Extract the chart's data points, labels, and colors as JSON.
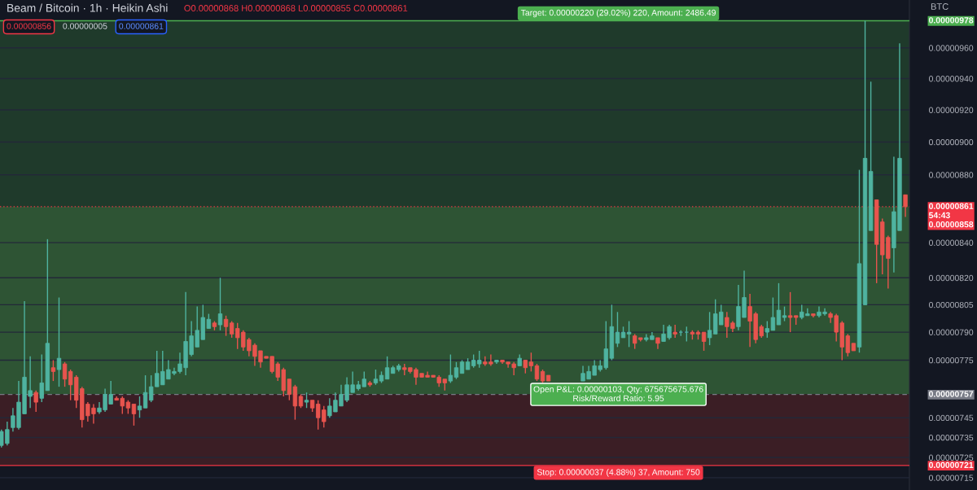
{
  "chart_data": {
    "type": "candlestick",
    "title": "Beam / Bitcoin · 1h · Heikin Ashi",
    "ylabel": "BTC",
    "annotations": [
      "O0.00000868 H0.00000868 L0.00000855 C0.00000861",
      "0.00000856",
      "0.00000005",
      "0.00000861"
    ],
    "categories": [
      null,
      null,
      null,
      null,
      null,
      null,
      null,
      null,
      null,
      null,
      null,
      null,
      null,
      null,
      null,
      null,
      null,
      null,
      null,
      null,
      null,
      null,
      null,
      null,
      null,
      null,
      null,
      null,
      null,
      null,
      null,
      null,
      null,
      null,
      null,
      null,
      null,
      null,
      null,
      null,
      null,
      null,
      null,
      null,
      null,
      null,
      null,
      null,
      null,
      null,
      null,
      null,
      null,
      null,
      null,
      null,
      null,
      null,
      null,
      null,
      null,
      null,
      null,
      null,
      null,
      null,
      null,
      null,
      null,
      null,
      null,
      null,
      null,
      null,
      null,
      null,
      null,
      null,
      null,
      null,
      null,
      null,
      null,
      null,
      null,
      null,
      null,
      null,
      null,
      null,
      null,
      null,
      null,
      null,
      null,
      null,
      null,
      null,
      null,
      null,
      null,
      null,
      null,
      null,
      null,
      null,
      null,
      null,
      null,
      null,
      null,
      null,
      null,
      null,
      null,
      null,
      null,
      null,
      null,
      null,
      null,
      null,
      null,
      null,
      null,
      null,
      null,
      null,
      null,
      null,
      null,
      null,
      null,
      null,
      null,
      null,
      null,
      null,
      null,
      null,
      null,
      null,
      null,
      null,
      null,
      null,
      null,
      null,
      null,
      null,
      null,
      null,
      null,
      null,
      null,
      null,
      null,
      null
    ],
    "ohlc": [
      [
        7.31e-06,
        7.39e-06,
        7.3e-06,
        7.38e-06
      ],
      [
        7.32e-06,
        7.43e-06,
        7.31e-06,
        7.39e-06
      ],
      [
        7.4e-06,
        7.5e-06,
        7.38e-06,
        7.46e-06
      ],
      [
        7.4e-06,
        7.64e-06,
        7.39e-06,
        7.53e-06
      ],
      [
        7.47e-06,
        8.07e-06,
        7.47e-06,
        7.66e-06
      ],
      [
        7.56e-06,
        7.77e-06,
        7.5e-06,
        7.59e-06
      ],
      [
        7.58e-06,
        7.59e-06,
        7.48e-06,
        7.53e-06
      ],
      [
        7.55e-06,
        7.78e-06,
        7.53e-06,
        7.63e-06
      ],
      [
        7.59e-06,
        8.42e-06,
        7.59e-06,
        7.84e-06
      ],
      [
        7.71e-06,
        7.75e-06,
        7.64e-06,
        7.69e-06
      ],
      [
        7.7e-06,
        8.09e-06,
        7.61e-06,
        7.76e-06
      ],
      [
        7.73e-06,
        7.74e-06,
        7.61e-06,
        7.65e-06
      ],
      [
        7.69e-06,
        7.7e-06,
        7.54e-06,
        7.62e-06
      ],
      [
        7.66e-06,
        7.67e-06,
        7.5e-06,
        7.54e-06
      ],
      [
        7.6e-06,
        7.61e-06,
        7.4e-06,
        7.44e-06
      ],
      [
        7.52e-06,
        7.53e-06,
        7.43e-06,
        7.46e-06
      ],
      [
        7.5e-06,
        7.52e-06,
        7.42e-06,
        7.47e-06
      ],
      [
        7.48e-06,
        7.53e-06,
        7.47e-06,
        7.5e-06
      ],
      [
        7.49e-06,
        7.6e-06,
        7.48e-06,
        7.57e-06
      ],
      [
        7.52e-06,
        7.64e-06,
        7.52e-06,
        7.57e-06
      ],
      [
        7.55e-06,
        7.56e-06,
        7.54e-06,
        7.54e-06
      ],
      [
        7.55e-06,
        7.56e-06,
        7.47e-06,
        7.51e-06
      ],
      [
        7.53e-06,
        7.54e-06,
        7.47e-06,
        7.5e-06
      ],
      [
        7.52e-06,
        7.52e-06,
        7.41e-06,
        7.47e-06
      ],
      [
        7.49e-06,
        7.56e-06,
        7.45e-06,
        7.51e-06
      ],
      [
        7.5e-06,
        7.67e-06,
        7.5e-06,
        7.58e-06
      ],
      [
        7.54e-06,
        7.67e-06,
        7.53e-06,
        7.61e-06
      ],
      [
        7.61e-06,
        7.8e-06,
        7.61e-06,
        7.68e-06
      ],
      [
        7.62e-06,
        7.8e-06,
        7.62e-06,
        7.69e-06
      ],
      [
        7.65e-06,
        7.75e-06,
        7.65e-06,
        7.7e-06
      ],
      [
        7.68e-06,
        7.71e-06,
        7.67e-06,
        7.69e-06
      ],
      [
        7.69e-06,
        7.79e-06,
        7.68e-06,
        7.73e-06
      ],
      [
        7.71e-06,
        8.12e-06,
        7.67e-06,
        7.85e-06
      ],
      [
        7.78e-06,
        7.96e-06,
        7.77e-06,
        7.88e-06
      ],
      [
        7.82e-06,
        8.04e-06,
        7.82e-06,
        7.91e-06
      ],
      [
        7.86e-06,
        8.05e-06,
        7.86e-06,
        7.98e-06
      ],
      [
        7.92e-06,
        8e-06,
        7.92e-06,
        7.97e-06
      ],
      [
        7.95e-06,
        7.96e-06,
        7.91e-06,
        7.93e-06
      ],
      [
        7.94e-06,
        8.2e-06,
        7.91e-06,
        8e-06
      ],
      [
        7.97e-06,
        7.99e-06,
        7.88e-06,
        7.93e-06
      ],
      [
        7.95e-06,
        7.96e-06,
        7.87e-06,
        7.89e-06
      ],
      [
        7.92e-06,
        7.95e-06,
        7.81e-06,
        7.87e-06
      ],
      [
        7.9e-06,
        7.91e-06,
        7.8e-06,
        7.82e-06
      ],
      [
        7.86e-06,
        7.87e-06,
        7.77e-06,
        7.8e-06
      ],
      [
        7.83e-06,
        7.84e-06,
        7.72e-06,
        7.77e-06
      ],
      [
        7.8e-06,
        7.8e-06,
        7.71e-06,
        7.74e-06
      ],
      [
        7.77e-06,
        7.77e-06,
        7.76e-06,
        7.76e-06
      ],
      [
        7.77e-06,
        7.77e-06,
        7.68e-06,
        7.69e-06
      ],
      [
        7.73e-06,
        7.74e-06,
        7.64e-06,
        7.66e-06
      ],
      [
        7.7e-06,
        7.71e-06,
        7.56e-06,
        7.59e-06
      ],
      [
        7.65e-06,
        7.65e-06,
        7.54e-06,
        7.57e-06
      ],
      [
        7.61e-06,
        7.62e-06,
        7.44e-06,
        7.51e-06
      ],
      [
        7.56e-06,
        7.57e-06,
        7.5e-06,
        7.51e-06
      ],
      [
        7.53e-06,
        7.58e-06,
        7.5e-06,
        7.54e-06
      ],
      [
        7.54e-06,
        7.54e-06,
        7.48e-06,
        7.5e-06
      ],
      [
        7.52e-06,
        7.54e-06,
        7.39e-06,
        7.45e-06
      ],
      [
        7.49e-06,
        7.51e-06,
        7.4e-06,
        7.43e-06
      ],
      [
        7.46e-06,
        7.55e-06,
        7.45e-06,
        7.51e-06
      ],
      [
        7.48e-06,
        7.58e-06,
        7.48e-06,
        7.54e-06
      ],
      [
        7.51e-06,
        7.62e-06,
        7.51e-06,
        7.57e-06
      ],
      [
        7.54e-06,
        7.66e-06,
        7.53e-06,
        7.62e-06
      ],
      [
        7.58e-06,
        7.69e-06,
        7.58e-06,
        7.62e-06
      ],
      [
        7.6e-06,
        7.64e-06,
        7.59e-06,
        7.62e-06
      ],
      [
        7.61e-06,
        7.69e-06,
        7.61e-06,
        7.65e-06
      ],
      [
        7.63e-06,
        7.64e-06,
        7.61e-06,
        7.62e-06
      ],
      [
        7.63e-06,
        7.7e-06,
        7.62e-06,
        7.65e-06
      ],
      [
        7.64e-06,
        7.69e-06,
        7.63e-06,
        7.67e-06
      ],
      [
        7.65e-06,
        7.77e-06,
        7.65e-06,
        7.71e-06
      ],
      [
        7.68e-06,
        7.72e-06,
        7.68e-06,
        7.71e-06
      ],
      [
        7.7e-06,
        7.73e-06,
        7.69e-06,
        7.72e-06
      ],
      [
        7.71e-06,
        7.73e-06,
        7.67e-06,
        7.7e-06
      ],
      [
        7.71e-06,
        7.71e-06,
        7.68e-06,
        7.69e-06
      ],
      [
        7.7e-06,
        7.71e-06,
        7.62e-06,
        7.66e-06
      ],
      [
        7.68e-06,
        7.68e-06,
        7.66e-06,
        7.66e-06
      ],
      [
        7.67e-06,
        7.69e-06,
        7.66e-06,
        7.66e-06
      ],
      [
        7.67e-06,
        7.67e-06,
        7.66e-06,
        7.66e-06
      ],
      [
        7.66e-06,
        7.67e-06,
        7.61e-06,
        7.63e-06
      ],
      [
        7.65e-06,
        7.65e-06,
        7.59e-06,
        7.63e-06
      ],
      [
        7.64e-06,
        7.78e-06,
        7.63e-06,
        7.67e-06
      ],
      [
        7.66e-06,
        7.74e-06,
        7.65e-06,
        7.71e-06
      ],
      [
        7.68e-06,
        7.75e-06,
        7.68e-06,
        7.74e-06
      ],
      [
        7.7e-06,
        7.76e-06,
        7.7e-06,
        7.74e-06
      ],
      [
        7.72e-06,
        7.78e-06,
        7.71e-06,
        7.75e-06
      ],
      [
        7.73e-06,
        7.8e-06,
        7.71e-06,
        7.75e-06
      ],
      [
        7.74e-06,
        7.77e-06,
        7.72e-06,
        7.73e-06
      ],
      [
        7.74e-06,
        7.78e-06,
        7.72e-06,
        7.73e-06
      ],
      [
        7.74e-06,
        7.75e-06,
        7.73e-06,
        7.75e-06
      ],
      [
        7.75e-06,
        7.75e-06,
        7.73e-06,
        7.74e-06
      ],
      [
        7.74e-06,
        7.74e-06,
        7.71e-06,
        7.73e-06
      ],
      [
        7.73e-06,
        7.74e-06,
        7.67e-06,
        7.71e-06
      ],
      [
        7.72e-06,
        7.78e-06,
        7.72e-06,
        7.76e-06
      ],
      [
        7.75e-06,
        7.75e-06,
        7.68e-06,
        7.71e-06
      ],
      [
        7.74e-06,
        7.79e-06,
        7.69e-06,
        7.72e-06
      ],
      [
        7.72e-06,
        7.73e-06,
        7.64e-06,
        7.65e-06
      ],
      [
        7.69e-06,
        7.7e-06,
        7.63e-06,
        7.64e-06
      ],
      [
        7.67e-06,
        7.67e-06,
        7.64e-06,
        7.64e-06
      ],
      null,
      null,
      null,
      null,
      null,
      [
        7.64e-06,
        7.72e-06,
        7.64e-06,
        7.68e-06
      ],
      [
        7.65e-06,
        7.72e-06,
        7.65e-06,
        7.69e-06
      ],
      [
        7.67e-06,
        7.75e-06,
        7.67e-06,
        7.72e-06
      ],
      [
        7.7e-06,
        7.75e-06,
        7.69e-06,
        7.72e-06
      ],
      [
        7.71e-06,
        7.96e-06,
        7.7e-06,
        7.81e-06
      ],
      [
        7.76e-06,
        8.05e-06,
        7.75e-06,
        7.93e-06
      ],
      [
        7.84e-06,
        8.01e-06,
        7.82e-06,
        7.9e-06
      ],
      [
        7.87e-06,
        7.93e-06,
        7.87e-06,
        7.9e-06
      ],
      [
        7.89e-06,
        7.96e-06,
        7.82e-06,
        7.9e-06
      ],
      [
        7.88e-06,
        7.89e-06,
        7.81e-06,
        7.84e-06
      ],
      [
        7.87e-06,
        7.87e-06,
        7.85e-06,
        7.86e-06
      ],
      [
        7.86e-06,
        7.89e-06,
        7.85e-06,
        7.87e-06
      ],
      [
        7.86e-06,
        7.9e-06,
        7.86e-06,
        7.88e-06
      ],
      [
        7.87e-06,
        7.87e-06,
        7.81e-06,
        7.84e-06
      ],
      [
        7.85e-06,
        7.94e-06,
        7.85e-06,
        7.89e-06
      ],
      [
        7.87e-06,
        7.94e-06,
        7.86e-06,
        7.93e-06
      ],
      [
        7.9e-06,
        7.94e-06,
        7.87e-06,
        7.89e-06
      ],
      [
        7.9e-06,
        7.91e-06,
        7.88e-06,
        7.9e-06
      ],
      [
        7.9e-06,
        7.93e-06,
        7.85e-06,
        7.9e-06
      ],
      [
        7.9e-06,
        7.91e-06,
        7.86e-06,
        7.89e-06
      ],
      [
        7.9e-06,
        7.91e-06,
        7.86e-06,
        7.89e-06
      ],
      [
        7.9e-06,
        7.9e-06,
        7.8e-06,
        7.85e-06
      ],
      [
        7.87e-06,
        8.01e-06,
        7.83e-06,
        7.91e-06
      ],
      [
        7.89e-06,
        8.08e-06,
        7.89e-06,
        8e-06
      ],
      [
        7.94e-06,
        8.05e-06,
        7.94e-06,
        8.01e-06
      ],
      [
        7.98e-06,
        8.01e-06,
        7.87e-06,
        7.93e-06
      ],
      [
        7.95e-06,
        7.96e-06,
        7.9e-06,
        7.92e-06
      ],
      [
        7.93e-06,
        8.16e-06,
        7.91e-06,
        8.04e-06
      ],
      [
        7.98e-06,
        8.24e-06,
        7.98e-06,
        8.09e-06
      ],
      [
        8.04e-06,
        8.11e-06,
        7.82e-06,
        7.96e-06
      ],
      [
        8e-06,
        8.01e-06,
        7.84e-06,
        7.86e-06
      ],
      [
        7.93e-06,
        7.94e-06,
        7.87e-06,
        7.88e-06
      ],
      [
        7.9e-06,
        7.96e-06,
        7.87e-06,
        7.92e-06
      ],
      [
        7.91e-06,
        8.09e-06,
        7.91e-06,
        7.98e-06
      ],
      [
        7.94e-06,
        8.17e-06,
        7.94e-06,
        8.02e-06
      ],
      [
        7.98e-06,
        8.04e-06,
        7.96e-06,
        7.99e-06
      ],
      [
        7.99e-06,
        8.12e-06,
        7.9e-06,
        7.98e-06
      ],
      [
        7.99e-06,
        7.99e-06,
        7.94e-06,
        7.98e-06
      ],
      [
        7.98e-06,
        8.05e-06,
        7.97e-06,
        8.01e-06
      ],
      [
        7.99e-06,
        8.03e-06,
        7.99e-06,
        8e-06
      ],
      [
        8e-06,
        8e-06,
        7.98e-06,
        7.99e-06
      ],
      [
        7.99e-06,
        8.04e-06,
        7.98e-06,
        8.01e-06
      ],
      [
        8e-06,
        8.03e-06,
        7.99e-06,
        8.01e-06
      ],
      [
        8e-06,
        8.01e-06,
        7.95e-06,
        7.98e-06
      ],
      [
        7.99e-06,
        8e-06,
        7.85e-06,
        7.9e-06
      ],
      [
        7.95e-06,
        7.96e-06,
        7.75e-06,
        7.82e-06
      ],
      [
        7.88e-06,
        7.89e-06,
        7.77e-06,
        7.79e-06
      ],
      [
        7.84e-06,
        7.84e-06,
        7.8e-06,
        7.8e-06
      ],
      [
        7.82e-06,
        8.83e-06,
        7.79e-06,
        8.28e-06
      ],
      [
        8.05e-06,
        9.78e-06,
        8.05e-06,
        8.9e-06
      ],
      [
        8.47e-06,
        9.38e-06,
        8.47e-06,
        8.82e-06
      ],
      [
        8.65e-06,
        8.65e-06,
        8.17e-06,
        8.39e-06
      ],
      [
        8.52e-06,
        8.54e-06,
        8.22e-06,
        8.33e-06
      ],
      [
        8.43e-06,
        8.44e-06,
        8.14e-06,
        8.31e-06
      ],
      [
        8.37e-06,
        8.91e-06,
        8.23e-06,
        8.58e-06
      ],
      [
        8.47e-06,
        9.63e-06,
        8.47e-06,
        8.9e-06
      ],
      [
        8.68e-06,
        8.68e-06,
        8.55e-06,
        8.61e-06
      ]
    ],
    "colors": [
      "#4fb3a0",
      "#4fb3a0",
      "#4fb3a0",
      "#4fb3a0",
      "#4fb3a0",
      "#4fb3a0",
      "#e8544e",
      "#4fb3a0",
      "#4fb3a0",
      "#e8544e",
      "#4fb3a0",
      "#e8544e",
      "#e8544e",
      "#e8544e",
      "#e8544e",
      "#e8544e",
      "#e8544e",
      "#4fb3a0",
      "#4fb3a0",
      "#4fb3a0",
      "#e8544e",
      "#e8544e",
      "#e8544e",
      "#e8544e",
      "#4fb3a0",
      "#4fb3a0",
      "#4fb3a0",
      "#4fb3a0",
      "#4fb3a0",
      "#4fb3a0",
      "#4fb3a0",
      "#4fb3a0",
      "#4fb3a0",
      "#4fb3a0",
      "#4fb3a0",
      "#4fb3a0",
      "#4fb3a0",
      "#e8544e",
      "#4fb3a0",
      "#e8544e",
      "#e8544e",
      "#e8544e",
      "#e8544e",
      "#e8544e",
      "#e8544e",
      "#e8544e",
      "#e8544e",
      "#e8544e",
      "#e8544e",
      "#e8544e",
      "#e8544e",
      "#e8544e",
      "#e8544e",
      "#4fb3a0",
      "#e8544e",
      "#e8544e",
      "#e8544e",
      "#4fb3a0",
      "#4fb3a0",
      "#4fb3a0",
      "#4fb3a0",
      "#4fb3a0",
      "#4fb3a0",
      "#4fb3a0",
      "#e8544e",
      "#4fb3a0",
      "#4fb3a0",
      "#4fb3a0",
      "#4fb3a0",
      "#4fb3a0",
      "#e8544e",
      "#e8544e",
      "#e8544e",
      "#e8544e",
      "#e8544e",
      "#e8544e",
      "#e8544e",
      "#e8544e",
      "#4fb3a0",
      "#4fb3a0",
      "#4fb3a0",
      "#4fb3a0",
      "#4fb3a0",
      "#4fb3a0",
      "#e8544e",
      "#e8544e",
      "#4fb3a0",
      "#e8544e",
      "#e8544e",
      "#e8544e",
      "#4fb3a0",
      "#e8544e",
      "#e8544e",
      "#e8544e",
      "#e8544e",
      "#e8544e",
      null,
      null,
      null,
      null,
      null,
      "#4fb3a0",
      "#4fb3a0",
      "#4fb3a0",
      "#4fb3a0",
      "#4fb3a0",
      "#4fb3a0",
      "#4fb3a0",
      "#4fb3a0",
      "#4fb3a0",
      "#e8544e",
      "#e8544e",
      "#4fb3a0",
      "#4fb3a0",
      "#e8544e",
      "#4fb3a0",
      "#4fb3a0",
      "#e8544e",
      "#4fb3a0",
      "#4fb3a0",
      "#e8544e",
      "#e8544e",
      "#e8544e",
      "#4fb3a0",
      "#4fb3a0",
      "#4fb3a0",
      "#e8544e",
      "#e8544e",
      "#4fb3a0",
      "#4fb3a0",
      "#e8544e",
      "#e8544e",
      "#e8544e",
      "#4fb3a0",
      "#4fb3a0",
      "#4fb3a0",
      "#4fb3a0",
      "#e8544e",
      "#e8544e",
      "#4fb3a0",
      "#4fb3a0",
      "#e8544e",
      "#4fb3a0",
      "#4fb3a0",
      "#e8544e",
      "#e8544e",
      "#e8544e",
      "#e8544e",
      "#e8544e",
      "#4fb3a0",
      "#4fb3a0",
      "#4fb3a0",
      "#e8544e",
      "#e8544e",
      "#e8544e",
      "#4fb3a0",
      "#4fb3a0",
      "#e8544e"
    ],
    "log": "y",
    "ylim": [
      7.09e-06,
      9.92e-06
    ],
    "yticks": [
      {
        "value": 7.15e-06,
        "label": "0.00000715"
      },
      {
        "value": 7.25e-06,
        "label": "0.00000725"
      },
      {
        "value": 7.35e-06,
        "label": "0.00000735"
      },
      {
        "value": 7.45e-06,
        "label": "0.00000745"
      },
      {
        "value": 7.75e-06,
        "label": "0.00000775"
      },
      {
        "value": 7.9e-06,
        "label": "0.00000790"
      },
      {
        "value": 8.05e-06,
        "label": "0.00000805"
      },
      {
        "value": 8.2e-06,
        "label": "0.00000820"
      },
      {
        "value": 8.4e-06,
        "label": "0.00000840"
      },
      {
        "value": 8.8e-06,
        "label": "0.00000880"
      },
      {
        "value": 9e-06,
        "label": "0.00000900"
      },
      {
        "value": 9.2e-06,
        "label": "0.00000920"
      },
      {
        "value": 9.4e-06,
        "label": "0.00000940"
      },
      {
        "value": 9.6e-06,
        "label": "0.00000960"
      }
    ],
    "grid": "y",
    "tick_labels": "y",
    "bands": [
      {
        "axis": "y",
        "from": 8.61e-06,
        "to": 9.78e-06,
        "label": "Target: 0.00000220 (29.02%) 220, Amount: 2486.49",
        "color": "#1f3a2b"
      },
      {
        "axis": "y",
        "from": 7.57e-06,
        "to": 8.61e-06,
        "label": "Open P&L: 0.00000103, Qty: 675675675.676\nRisk/Reward Ratio: 5.95",
        "color": "#2e5434"
      },
      {
        "axis": "y",
        "from": 7.21e-06,
        "to": 7.57e-06,
        "label": "Stop: 0.00000037 (4.88%) 37, Amount: 750",
        "color": "#3b1e25"
      }
    ],
    "ref_lines": [
      {
        "axis": "y",
        "value": 9.78e-06,
        "label": "0.00000978",
        "color": "#4caf50",
        "line_style": "solid"
      },
      {
        "axis": "y",
        "value": 8.61e-06,
        "label": "0.00000861\n54:43\n0.00000858",
        "color": "#f23645",
        "line_style": "dotted"
      },
      {
        "axis": "y",
        "value": 7.57e-06,
        "label": "0.00000757",
        "color": "#787b86",
        "line_style": "dashed"
      },
      {
        "axis": "y",
        "value": 7.21e-06,
        "label": "0.00000721",
        "color": "#f23645",
        "line_style": "solid"
      }
    ]
  }
}
